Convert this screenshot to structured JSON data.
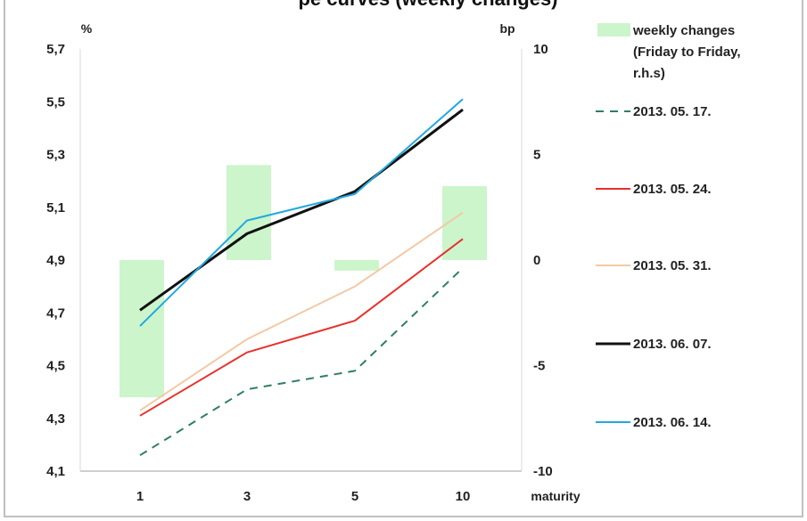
{
  "chart_data": {
    "type": "bar+line",
    "title": "pe curves (weekly changes)",
    "x_label": "maturity",
    "y_left_label": "%",
    "y_right_label": "bp",
    "categories": [
      "1",
      "3",
      "5",
      "10"
    ],
    "y_left_ticks": [
      "5,7",
      "5,5",
      "5,3",
      "5,1",
      "4,9",
      "4,7",
      "4,5",
      "4,3",
      "4,1"
    ],
    "y_left_range": [
      4.1,
      5.7
    ],
    "y_right_ticks": [
      "10",
      "5",
      "0",
      "-5",
      "-10"
    ],
    "y_right_range": [
      -10,
      10
    ],
    "bars": {
      "name_lines": [
        "weekly changes",
        "(Friday to Friday,",
        "r.h.s)"
      ],
      "color": "#ccf5cc",
      "values": [
        -6.5,
        4.5,
        -0.5,
        3.5
      ]
    },
    "series": [
      {
        "name": "2013. 05. 17.",
        "color": "#2e7d6b",
        "dash": true,
        "width": 2,
        "values": [
          4.16,
          4.41,
          4.48,
          4.87
        ]
      },
      {
        "name": "2013. 05. 24.",
        "color": "#e8312b",
        "dash": false,
        "width": 2,
        "values": [
          4.31,
          4.55,
          4.67,
          4.98
        ]
      },
      {
        "name": "2013. 05. 31.",
        "color": "#f4c8a4",
        "dash": false,
        "width": 2,
        "values": [
          4.33,
          4.6,
          4.8,
          5.08
        ]
      },
      {
        "name": "2013. 06. 07.",
        "color": "#111111",
        "dash": false,
        "width": 3,
        "values": [
          4.71,
          5.0,
          5.16,
          5.47
        ]
      },
      {
        "name": "2013. 06. 14.",
        "color": "#22a8e0",
        "dash": false,
        "width": 2,
        "values": [
          4.65,
          5.05,
          5.15,
          5.51
        ]
      }
    ]
  }
}
